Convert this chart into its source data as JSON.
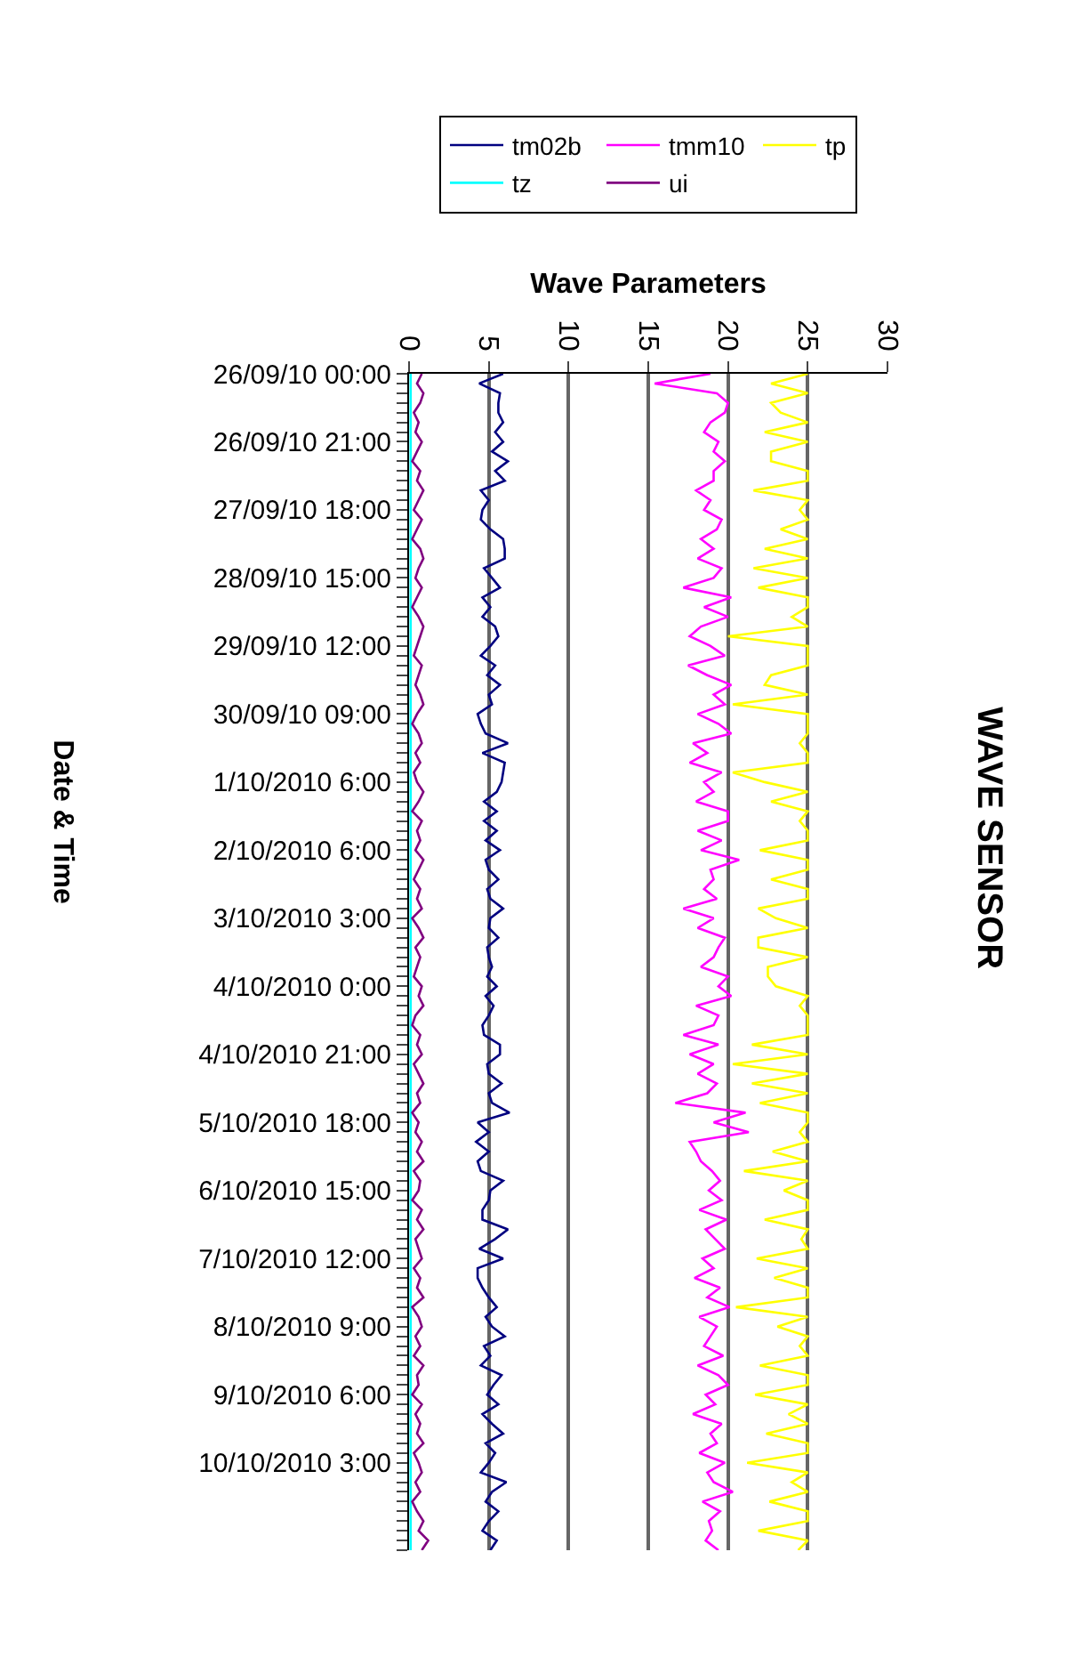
{
  "chart_data": {
    "type": "line",
    "title": "WAVE SENSOR",
    "xlabel": "Wave Parameters",
    "ylabel": "Date & Time",
    "orientation": "horizontal",
    "categories": [
      "26/09/10 00:00",
      null,
      null,
      null,
      null,
      null,
      null,
      "26/09/10 21:00",
      null,
      null,
      null,
      null,
      null,
      null,
      "27/09/10 18:00",
      null,
      null,
      null,
      null,
      null,
      null,
      "28/09/10 15:00",
      null,
      null,
      null,
      null,
      null,
      null,
      "29/09/10 12:00",
      null,
      null,
      null,
      null,
      null,
      null,
      "30/09/10 09:00",
      null,
      null,
      null,
      null,
      null,
      null,
      "1/10/2010 6:00",
      null,
      null,
      null,
      null,
      null,
      null,
      "2/10/2010 6:00",
      null,
      null,
      null,
      null,
      null,
      null,
      "3/10/2010 3:00",
      null,
      null,
      null,
      null,
      null,
      null,
      "4/10/2010 0:00",
      null,
      null,
      null,
      null,
      null,
      null,
      "4/10/2010 21:00",
      null,
      null,
      null,
      null,
      null,
      null,
      "5/10/2010 18:00",
      null,
      null,
      null,
      null,
      null,
      null,
      "6/10/2010 15:00",
      null,
      null,
      null,
      null,
      null,
      null,
      "7/10/2010 12:00",
      null,
      null,
      null,
      null,
      null,
      null,
      "8/10/2010 9:00",
      null,
      null,
      null,
      null,
      null,
      null,
      "9/10/2010 6:00",
      null,
      null,
      null,
      null,
      null,
      null,
      "10/10/2010 3:00",
      null,
      null,
      null,
      null,
      null,
      null,
      null,
      null,
      null
    ],
    "series": [
      {
        "name": "tm02b",
        "color": "#000080",
        "values": [
          5.9,
          4.4,
          5.7,
          5.6,
          5.6,
          5.9,
          5.4,
          5.9,
          5.2,
          6.2,
          5.4,
          6.0,
          4.5,
          5.0,
          4.6,
          4.5,
          5.1,
          5.9,
          6.0,
          6.0,
          4.7,
          5.2,
          5.7,
          4.6,
          5.1,
          4.6,
          5.4,
          5.6,
          5.1,
          4.5,
          5.4,
          4.9,
          5.7,
          5.0,
          5.2,
          4.3,
          4.5,
          4.8,
          6.2,
          4.6,
          6.0,
          5.9,
          5.8,
          5.5,
          4.7,
          5.5,
          4.7,
          5.5,
          4.8,
          5.7,
          4.8,
          5.0,
          5.6,
          4.9,
          5.1,
          5.9,
          5.1,
          5.0,
          5.6,
          4.9,
          5.0,
          5.2,
          4.9,
          5.5,
          4.8,
          5.3,
          5.0,
          4.6,
          4.7,
          5.7,
          5.7,
          4.9,
          5.0,
          5.8,
          5.0,
          5.2,
          6.3,
          4.3,
          5.0,
          4.2,
          5.0,
          4.3,
          4.5,
          5.9,
          5.1,
          5.0,
          4.6,
          4.6,
          6.2,
          5.4,
          4.4,
          5.9,
          4.3,
          4.3,
          4.6,
          5.0,
          5.5,
          4.8,
          5.2,
          6.0,
          4.7,
          5.1,
          4.5,
          5.8,
          5.3,
          4.9,
          5.6,
          4.6,
          5.2,
          5.9,
          4.8,
          5.4,
          5.0,
          4.5,
          6.1,
          5.2,
          4.8,
          5.6,
          5.0,
          4.6,
          5.5,
          5.1
        ]
      },
      {
        "name": "tmm10",
        "color": "#ff00ff",
        "values": [
          18.9,
          15.4,
          19.3,
          20.0,
          19.8,
          18.9,
          18.5,
          19.4,
          19.1,
          19.8,
          19.1,
          19.1,
          18.0,
          18.9,
          18.5,
          19.6,
          19.3,
          18.3,
          19.1,
          18.1,
          19.6,
          19.1,
          17.2,
          20.2,
          18.5,
          20.0,
          18.3,
          17.6,
          18.9,
          19.8,
          17.5,
          18.7,
          20.2,
          19.1,
          19.8,
          18.1,
          19.4,
          20.2,
          17.8,
          18.7,
          17.6,
          19.6,
          18.5,
          19.1,
          18.0,
          20.0,
          20.0,
          18.1,
          19.6,
          18.3,
          20.7,
          18.9,
          19.1,
          18.5,
          19.3,
          17.2,
          19.1,
          18.1,
          19.8,
          19.4,
          19.1,
          18.3,
          20.0,
          19.4,
          20.2,
          18.0,
          19.4,
          19.1,
          17.2,
          19.4,
          17.6,
          19.1,
          18.1,
          19.3,
          18.7,
          16.7,
          21.1,
          19.1,
          21.3,
          17.6,
          18.0,
          18.3,
          19.0,
          19.5,
          18.8,
          19.6,
          18.2,
          19.9,
          18.6,
          19.2,
          19.8,
          18.4,
          19.1,
          17.9,
          19.5,
          18.7,
          20.1,
          18.2,
          19.3,
          18.9,
          18.5,
          19.7,
          18.1,
          19.4,
          20.0,
          18.6,
          19.2,
          17.8,
          19.6,
          18.9,
          19.3,
          18.2,
          19.8,
          18.7,
          19.1,
          20.3,
          18.4,
          19.5,
          18.8,
          19.0,
          18.6,
          19.4
        ]
      },
      {
        "name": "tp",
        "color": "#ffff00",
        "values": [
          25,
          22.7,
          25,
          22.7,
          23.3,
          25,
          22.3,
          25,
          22.7,
          22.7,
          25,
          25,
          21.6,
          25,
          24.5,
          25,
          23.3,
          25,
          22.3,
          25,
          21.6,
          25,
          21.9,
          25,
          25,
          24.0,
          25,
          20.0,
          25,
          25,
          25,
          22.7,
          22.3,
          25,
          20.3,
          25,
          25,
          25,
          24.5,
          25,
          25,
          20.3,
          22.3,
          25,
          22.7,
          25,
          24.5,
          25,
          25,
          22.0,
          25,
          25,
          22.7,
          25,
          25,
          21.9,
          23.0,
          25,
          21.9,
          21.9,
          25,
          22.5,
          22.5,
          23.0,
          25,
          24.5,
          25,
          25,
          25,
          21.5,
          25,
          20.3,
          25,
          21.5,
          25,
          22.0,
          25,
          25,
          24.5,
          25,
          22.8,
          25,
          21.0,
          25,
          23.5,
          25,
          25,
          22.3,
          25,
          24.6,
          25,
          21.8,
          25,
          22.9,
          25,
          25,
          20.5,
          25,
          23.1,
          25,
          24.5,
          25,
          22.0,
          25,
          25,
          21.7,
          25,
          23.8,
          25,
          22.4,
          25,
          25,
          21.2,
          25,
          24.0,
          25,
          22.6,
          25,
          25,
          21.9,
          25,
          24.4
        ]
      },
      {
        "name": "tz",
        "color": "#00ffff",
        "values": [
          0.1,
          0.1,
          0.1,
          0.1,
          0.1,
          0.1,
          0.1,
          0.1,
          0.1,
          0.1,
          0.1,
          0.1,
          0.1,
          0.1,
          0.1,
          0.1,
          0.1,
          0.1,
          0.1,
          0.1,
          0.1,
          0.1,
          0.1,
          0.1,
          0.1,
          0.1,
          0.1,
          0.1,
          0.1,
          0.1,
          0.1,
          0.1,
          0.1,
          0.1,
          0.1,
          0.1,
          0.1,
          0.1,
          0.1,
          0.1,
          0.1,
          0.1,
          0.1,
          0.1,
          0.1,
          0.1,
          0.1,
          0.1,
          0.1,
          0.1,
          0.1,
          0.1,
          0.1,
          0.1,
          0.1,
          0.1,
          0.1,
          0.1,
          0.1,
          0.1,
          0.1,
          0.1,
          0.1,
          0.1,
          0.1,
          0.1,
          0.1,
          0.1,
          0.1,
          0.1,
          0.1,
          0.1,
          0.1,
          0.1,
          0.1,
          0.1,
          0.1,
          0.1,
          0.1,
          0.1,
          0.1,
          0.1,
          0.1,
          0.1,
          0.1,
          0.1,
          0.1,
          0.1,
          0.1,
          0.1,
          0.1,
          0.1,
          0.1,
          0.1,
          0.1,
          0.1,
          0.1,
          0.1,
          0.1,
          0.1,
          0.1,
          0.1,
          0.1,
          0.1,
          0.1,
          0.1,
          0.1,
          0.1,
          0.1,
          0.1,
          0.1,
          0.1,
          0.1,
          0.1,
          0.1,
          0.1,
          0.1,
          0.1,
          0.1,
          0.1,
          0.1,
          0.1
        ]
      },
      {
        "name": "ui",
        "color": "#800080",
        "values": [
          0.8,
          0.5,
          0.9,
          0.7,
          0.3,
          0.6,
          0.4,
          0.8,
          0.5,
          0.2,
          0.7,
          0.5,
          0.9,
          0.6,
          0.3,
          0.8,
          0.5,
          0.2,
          0.7,
          0.9,
          0.6,
          0.4,
          0.8,
          0.5,
          0.2,
          0.6,
          0.9,
          0.7,
          0.5,
          0.3,
          0.8,
          0.6,
          0.4,
          0.7,
          0.9,
          0.5,
          0.2,
          0.6,
          0.8,
          0.4,
          0.7,
          0.3,
          0.5,
          0.9,
          0.6,
          0.2,
          0.8,
          0.5,
          0.7,
          0.4,
          0.9,
          0.6,
          0.3,
          0.7,
          0.5,
          0.8,
          0.2,
          0.6,
          0.9,
          0.4,
          0.7,
          0.5,
          0.3,
          0.8,
          0.6,
          0.9,
          0.4,
          0.2,
          0.7,
          0.5,
          0.8,
          0.3,
          0.6,
          0.9,
          0.5,
          0.7,
          0.2,
          0.6,
          0.4,
          0.8,
          0.5,
          0.9,
          0.3,
          0.7,
          0.6,
          0.2,
          0.8,
          0.5,
          0.9,
          0.4,
          0.6,
          0.8,
          0.3,
          0.7,
          0.5,
          0.9,
          0.2,
          0.6,
          0.8,
          0.4,
          0.7,
          0.3,
          0.9,
          0.5,
          0.6,
          0.2,
          0.8,
          0.4,
          0.7,
          0.5,
          0.9,
          0.3,
          0.6,
          0.8,
          0.4,
          0.7,
          0.2,
          0.5,
          0.9,
          0.6,
          1.2,
          0.8
        ]
      }
    ],
    "xlim": [
      0,
      30
    ],
    "xticks": [
      0,
      5,
      10,
      15,
      20,
      25,
      30
    ],
    "grid": "x",
    "legend": "top",
    "marker": "none",
    "line_style": "solid"
  }
}
